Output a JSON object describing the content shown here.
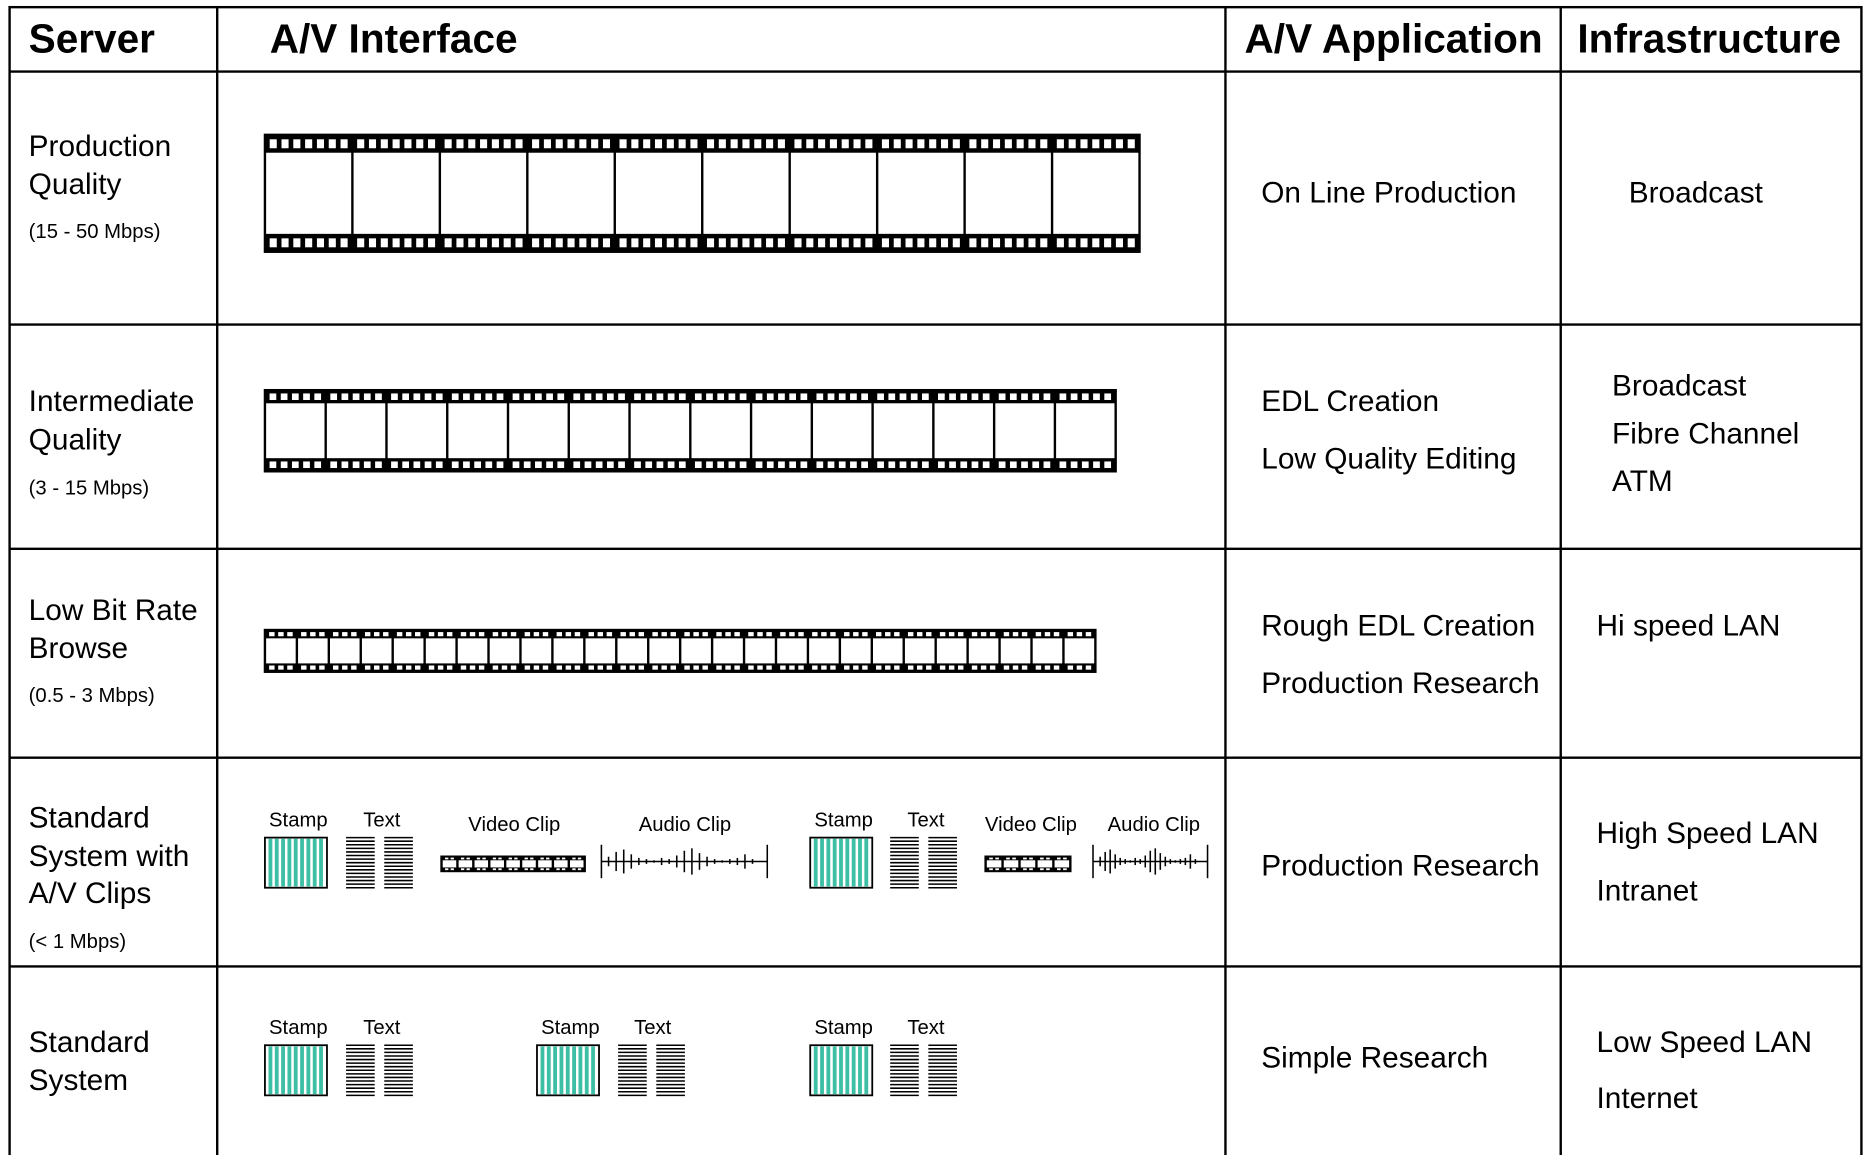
{
  "header": [
    "Server",
    "A/V Interface",
    "A/V Application",
    "Infrastructure"
  ],
  "rows": [
    {
      "server": [
        "Production",
        "Quality"
      ],
      "rate": "(15 - 50 Mbps)",
      "application": [
        "On Line Production"
      ],
      "infrastructure": [
        "Broadcast"
      ]
    },
    {
      "server": [
        "Intermediate",
        "Quality"
      ],
      "rate": "(3 - 15 Mbps)",
      "application": [
        "EDL Creation",
        "Low Quality Editing"
      ],
      "infrastructure": [
        "Broadcast",
        "Fibre Channel",
        "ATM"
      ]
    },
    {
      "server": [
        "Low Bit Rate",
        "Browse"
      ],
      "rate": "(0.5 - 3 Mbps)",
      "application": [
        "Rough  EDL Creation",
        "Production Research"
      ],
      "infrastructure": [
        "Hi speed LAN"
      ]
    },
    {
      "server": [
        "Standard",
        "System with",
        "A/V Clips"
      ],
      "rate": "(< 1 Mbps)",
      "interface": [
        "Stamp",
        "Text",
        "Video Clip",
        "Audio Clip",
        "Stamp",
        "Text",
        "Video Clip",
        "Audio Clip"
      ],
      "application": [
        "Production Research"
      ],
      "infrastructure": [
        "High Speed LAN",
        "Intranet"
      ]
    },
    {
      "server": [
        "Standard",
        "System"
      ],
      "interface": [
        "Stamp",
        "Text",
        "Stamp",
        "Text",
        "Stamp",
        "Text"
      ],
      "application": [
        "Simple Research"
      ],
      "infrastructure": [
        "Low Speed LAN",
        "Internet"
      ]
    }
  ]
}
